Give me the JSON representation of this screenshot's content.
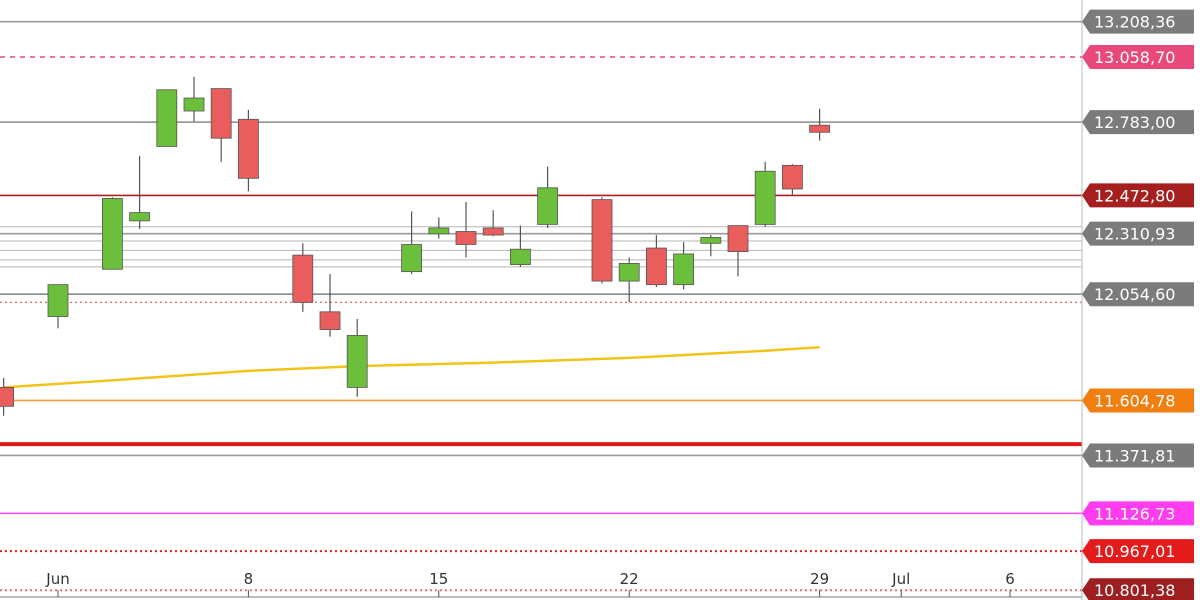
{
  "chart_data": {
    "type": "candlestick",
    "title": "",
    "xlabel": "",
    "ylabel": "",
    "ylim": [
      10760,
      13300
    ],
    "colors": {
      "up": "#6cbf3a",
      "down": "#ea5d5d",
      "outline": "#555555",
      "ma": "#f0c419"
    },
    "x_ticks": [
      {
        "label": "Jun",
        "day": 1
      },
      {
        "label": "8",
        "day": 8
      },
      {
        "label": "15",
        "day": 15
      },
      {
        "label": "22",
        "day": 22
      },
      {
        "label": "29",
        "day": 29
      },
      {
        "label": "Jul",
        "day": 32
      },
      {
        "label": "6",
        "day": 36
      }
    ],
    "candles": [
      {
        "day": -1,
        "o": 11660,
        "h": 11700,
        "l": 11540,
        "c": 11580
      },
      {
        "day": 1,
        "o": 11960,
        "h": 12095,
        "l": 11910,
        "c": 12095
      },
      {
        "day": 3,
        "o": 12160,
        "h": 12465,
        "l": 12160,
        "c": 12460
      },
      {
        "day": 4,
        "o": 12365,
        "h": 12640,
        "l": 12330,
        "c": 12400
      },
      {
        "day": 5,
        "o": 12680,
        "h": 12920,
        "l": 12680,
        "c": 12920
      },
      {
        "day": 6,
        "o": 12830,
        "h": 12975,
        "l": 12785,
        "c": 12885
      },
      {
        "day": 7,
        "o": 12925,
        "h": 12925,
        "l": 12615,
        "c": 12715
      },
      {
        "day": 8,
        "o": 12795,
        "h": 12835,
        "l": 12490,
        "c": 12545
      },
      {
        "day": 10,
        "o": 12220,
        "h": 12270,
        "l": 11980,
        "c": 12020
      },
      {
        "day": 11,
        "o": 11980,
        "h": 12140,
        "l": 11875,
        "c": 11905
      },
      {
        "day": 12,
        "o": 11660,
        "h": 11950,
        "l": 11620,
        "c": 11880
      },
      {
        "day": 14,
        "o": 12150,
        "h": 12405,
        "l": 12140,
        "c": 12265
      },
      {
        "day": 15,
        "o": 12310,
        "h": 12380,
        "l": 12290,
        "c": 12335
      },
      {
        "day": 16,
        "o": 12320,
        "h": 12445,
        "l": 12210,
        "c": 12265
      },
      {
        "day": 17,
        "o": 12335,
        "h": 12410,
        "l": 12300,
        "c": 12305
      },
      {
        "day": 18,
        "o": 12180,
        "h": 12345,
        "l": 12170,
        "c": 12245
      },
      {
        "day": 19,
        "o": 12350,
        "h": 12595,
        "l": 12335,
        "c": 12505
      },
      {
        "day": 21,
        "o": 12455,
        "h": 12465,
        "l": 12100,
        "c": 12110
      },
      {
        "day": 22,
        "o": 12110,
        "h": 12210,
        "l": 12020,
        "c": 12185
      },
      {
        "day": 23,
        "o": 12250,
        "h": 12305,
        "l": 12085,
        "c": 12095
      },
      {
        "day": 24,
        "o": 12095,
        "h": 12275,
        "l": 12075,
        "c": 12225
      },
      {
        "day": 25,
        "o": 12270,
        "h": 12305,
        "l": 12215,
        "c": 12295
      },
      {
        "day": 26,
        "o": 12345,
        "h": 12345,
        "l": 12130,
        "c": 12235
      },
      {
        "day": 27,
        "o": 12350,
        "h": 12615,
        "l": 12340,
        "c": 12575
      },
      {
        "day": 28,
        "o": 12600,
        "h": 12605,
        "l": 12475,
        "c": 12500
      },
      {
        "day": 29,
        "o": 12770,
        "h": 12840,
        "l": 12705,
        "c": 12740
      }
    ],
    "moving_average": [
      {
        "day": -1,
        "v": 11660
      },
      {
        "day": 3,
        "v": 11690
      },
      {
        "day": 8,
        "v": 11730
      },
      {
        "day": 12,
        "v": 11750
      },
      {
        "day": 17,
        "v": 11765
      },
      {
        "day": 22,
        "v": 11785
      },
      {
        "day": 27,
        "v": 11815
      },
      {
        "day": 29,
        "v": 11830
      }
    ],
    "levels": [
      {
        "value": 13208.36,
        "label": "13.208,36",
        "line_color": "#9a9a9a",
        "line_style": "solid",
        "label_color": "#7b7b7b"
      },
      {
        "value": 13058.7,
        "label": "13.058,70",
        "line_color": "#e8497a",
        "line_style": "dashed",
        "label_color": "#e8497a"
      },
      {
        "value": 12783.0,
        "label": "12.783,00",
        "line_color": "#8c8c8c",
        "line_style": "solid",
        "label_color": "#7b7b7b"
      },
      {
        "value": 12472.8,
        "label": "12.472,80",
        "line_color": "#a62222",
        "line_style": "solid",
        "label_color": "#a51f1f"
      },
      {
        "value": 12310.93,
        "label": "12.310,93",
        "line_color": "#9a9a9a",
        "line_style": "solid",
        "label_color": "#7b7b7b"
      },
      {
        "value": 12054.6,
        "label": "12.054,60",
        "line_color": "#8a8a8a",
        "line_style": "solid",
        "label_color": "#7b7b7b"
      },
      {
        "value": 11604.78,
        "label": "11.604,78",
        "line_color": "#f39a3a",
        "line_style": "solid",
        "label_color": "#f07f10"
      },
      {
        "value": 11371.81,
        "label": "11.371,81",
        "line_color": "#9a9a9a",
        "line_style": "solid",
        "label_color": "#7b7b7b"
      },
      {
        "value": 11126.73,
        "label": "11.126,73",
        "line_color": "#ff40ff",
        "line_style": "solid",
        "label_color": "#ff3df0"
      },
      {
        "value": 10967.01,
        "label": "10.967,01",
        "line_color": "#e02020",
        "line_style": "dotted",
        "label_color": "#e41b1b"
      },
      {
        "value": 10801.38,
        "label": "10.801,38",
        "line_color": "#e07070",
        "line_style": "dotted",
        "label_color": "#9e1f1f"
      }
    ]
  }
}
